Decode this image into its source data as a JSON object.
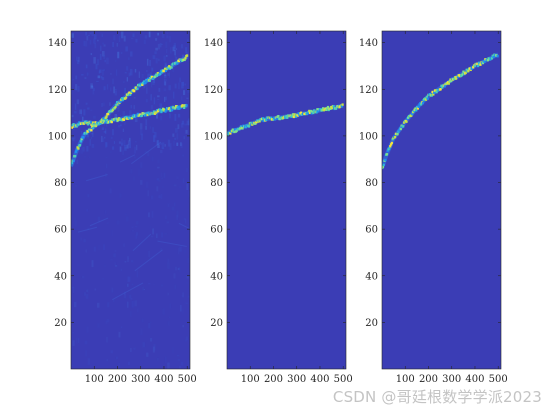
{
  "chart_data": [
    {
      "type": "heatmap",
      "background_color": "#3b3db5",
      "xlim": [
        0,
        512
      ],
      "ylim": [
        0,
        145
      ],
      "x_ticks": [
        100,
        200,
        300,
        400,
        500
      ],
      "y_ticks": [
        20,
        40,
        60,
        80,
        100,
        120,
        140
      ],
      "noise": "high",
      "ridges": [
        {
          "points": [
            [
              0,
              104
            ],
            [
              60,
              106
            ],
            [
              100,
              105
            ],
            [
              140,
              106
            ],
            [
              200,
              107
            ],
            [
              300,
              109
            ],
            [
              400,
              111
            ],
            [
              500,
              113
            ]
          ]
        },
        {
          "points": [
            [
              100,
              104
            ],
            [
              140,
              107
            ],
            [
              200,
              114
            ],
            [
              300,
              122
            ],
            [
              400,
              128
            ],
            [
              500,
              134
            ]
          ]
        },
        {
          "points": [
            [
              0,
              87
            ],
            [
              30,
              95
            ],
            [
              60,
              101
            ],
            [
              100,
              104
            ]
          ]
        }
      ]
    },
    {
      "type": "heatmap",
      "background_color": "#3b3db5",
      "xlim": [
        0,
        512
      ],
      "ylim": [
        0,
        145
      ],
      "x_ticks": [
        100,
        200,
        300,
        400,
        500
      ],
      "y_ticks": [
        20,
        40,
        60,
        80,
        100,
        120,
        140
      ],
      "noise": "none",
      "ridges": [
        {
          "points": [
            [
              0,
              101
            ],
            [
              50,
              103
            ],
            [
              100,
              105
            ],
            [
              150,
              107
            ],
            [
              200,
              107.5
            ],
            [
              300,
              109
            ],
            [
              400,
              111
            ],
            [
              500,
              113
            ]
          ]
        }
      ]
    },
    {
      "type": "heatmap",
      "background_color": "#3b3db5",
      "xlim": [
        0,
        512
      ],
      "ylim": [
        0,
        145
      ],
      "x_ticks": [
        100,
        200,
        300,
        400,
        500
      ],
      "y_ticks": [
        20,
        40,
        60,
        80,
        100,
        120,
        140
      ],
      "noise": "none",
      "ridges": [
        {
          "points": [
            [
              0,
              86
            ],
            [
              20,
              92
            ],
            [
              50,
              99
            ],
            [
              100,
              106
            ],
            [
              150,
              112
            ],
            [
              200,
              117
            ],
            [
              300,
              124
            ],
            [
              400,
              130
            ],
            [
              500,
              135
            ]
          ]
        }
      ]
    }
  ],
  "watermark": "CSDN @哥廷根数学学派2023"
}
